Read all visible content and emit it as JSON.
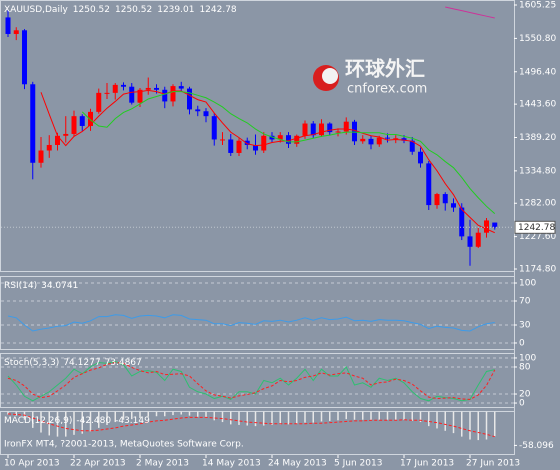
{
  "chart_data": [
    {
      "type": "candlestick",
      "title": "XAUUSD,Daily",
      "categories": [
        "10 Apr 2013",
        null,
        null,
        null,
        null,
        null,
        null,
        null,
        "22 Apr 2013",
        null,
        null,
        null,
        null,
        null,
        null,
        null,
        "2 May 2013",
        null,
        null,
        null,
        null,
        null,
        null,
        null,
        "14 May 2013",
        null,
        null,
        null,
        null,
        null,
        null,
        null,
        "24 May 2013",
        null,
        null,
        null,
        null,
        null,
        null,
        null,
        "5 Jun 2013",
        null,
        null,
        null,
        null,
        null,
        null,
        null,
        "17 Jun 2013",
        null,
        null,
        null,
        null,
        null,
        null,
        null,
        "27 Jun 2013",
        null,
        null,
        null
      ],
      "open": [
        1585,
        1558,
        1564,
        1476,
        1348,
        1368,
        1377,
        1392,
        1395,
        1424,
        1408,
        1431,
        1462,
        1462,
        1475,
        1472,
        1446,
        1467,
        1470,
        1467,
        1448,
        1473,
        1469,
        1435,
        1432,
        1424,
        1386,
        1386,
        1364,
        1384,
        1377,
        1368,
        1392,
        1386,
        1393,
        1379,
        1392,
        1412,
        1393,
        1412,
        1398,
        1399,
        1415,
        1383,
        1387,
        1378,
        1389,
        1388,
        1388,
        1384,
        1366,
        1347,
        1279,
        1297,
        1282,
        1275,
        1228,
        1211,
        1234,
        1250.52
      ],
      "high": [
        1597,
        1569,
        1566,
        1480,
        1390,
        1393,
        1397,
        1424,
        1433,
        1427,
        1436,
        1469,
        1478,
        1478,
        1479,
        1478,
        1470,
        1487,
        1476,
        1472,
        1476,
        1480,
        1472,
        1441,
        1437,
        1429,
        1398,
        1395,
        1388,
        1389,
        1394,
        1398,
        1398,
        1398,
        1398,
        1394,
        1417,
        1416,
        1419,
        1414,
        1404,
        1422,
        1418,
        1393,
        1392,
        1392,
        1396,
        1393,
        1393,
        1390,
        1373,
        1351,
        1299,
        1300,
        1290,
        1282,
        1255,
        1242,
        1258,
        1250.52
      ],
      "low": [
        1553,
        1548,
        1468,
        1321,
        1340,
        1356,
        1368,
        1381,
        1391,
        1400,
        1400,
        1428,
        1452,
        1451,
        1466,
        1443,
        1439,
        1459,
        1461,
        1437,
        1440,
        1465,
        1427,
        1424,
        1414,
        1376,
        1377,
        1359,
        1359,
        1370,
        1361,
        1364,
        1381,
        1381,
        1372,
        1374,
        1387,
        1388,
        1390,
        1393,
        1391,
        1394,
        1377,
        1379,
        1370,
        1374,
        1381,
        1380,
        1380,
        1361,
        1340,
        1271,
        1273,
        1270,
        1268,
        1222,
        1180,
        1209,
        1226,
        1239.01
      ],
      "close": [
        1558,
        1564,
        1476,
        1348,
        1368,
        1377,
        1392,
        1395,
        1424,
        1408,
        1431,
        1462,
        1462,
        1475,
        1472,
        1446,
        1467,
        1470,
        1467,
        1448,
        1473,
        1469,
        1435,
        1432,
        1424,
        1386,
        1386,
        1364,
        1384,
        1377,
        1368,
        1392,
        1386,
        1393,
        1379,
        1392,
        1412,
        1393,
        1412,
        1398,
        1399,
        1415,
        1383,
        1387,
        1378,
        1389,
        1388,
        1388,
        1384,
        1366,
        1347,
        1279,
        1297,
        1282,
        1275,
        1228,
        1211,
        1234,
        1254,
        1242.78
      ],
      "up_color": "#ff0000",
      "down_color": "#0000ff",
      "lines": [
        {
          "color": "#ff0000",
          "values": [
            null,
            null,
            null,
            null,
            1463,
            1427,
            1392,
            1376,
            1391,
            1399,
            1410,
            1424,
            1437,
            1448,
            1460,
            1463,
            1464,
            1466,
            1464,
            1460,
            1465,
            1465,
            1458,
            1451,
            1447,
            1429,
            1413,
            1398,
            1389,
            1379,
            1376,
            1377,
            1381,
            1383,
            1384,
            1388,
            1392,
            1394,
            1398,
            1401,
            1403,
            1403,
            1401,
            1396,
            1392,
            1390,
            1385,
            1386,
            1385,
            1383,
            1375,
            1353,
            1335,
            1314,
            1296,
            1272,
            1259,
            1246,
            1240,
            1234
          ]
        },
        {
          "color": "#22cc22",
          "values": [
            null,
            null,
            null,
            null,
            null,
            null,
            null,
            null,
            null,
            1431,
            1418,
            1408,
            1406,
            1420,
            1430,
            1436,
            1444,
            1452,
            1456,
            1460,
            1464,
            1464,
            1462,
            1458,
            1454,
            1447,
            1439,
            1428,
            1420,
            1413,
            1403,
            1395,
            1390,
            1386,
            1382,
            1382,
            1385,
            1388,
            1391,
            1393,
            1396,
            1398,
            1398,
            1397,
            1397,
            1397,
            1394,
            1394,
            1391,
            1388,
            1383,
            1369,
            1361,
            1350,
            1340,
            1324,
            1306,
            1291,
            1277,
            1265
          ]
        },
        {
          "color": "#cc3399",
          "values": [
            null,
            null,
            null,
            null,
            null,
            null,
            null,
            null,
            null,
            null,
            null,
            null,
            null,
            null,
            null,
            null,
            null,
            null,
            null,
            null,
            null,
            null,
            null,
            null,
            null,
            null,
            null,
            null,
            null,
            null,
            null,
            null,
            null,
            null,
            null,
            null,
            null,
            null,
            null,
            null,
            null,
            null,
            null,
            null,
            null,
            null,
            null,
            null,
            null,
            null,
            null,
            null,
            null,
            1602,
            1599,
            1596,
            1593,
            1590,
            1587,
            1584
          ]
        }
      ],
      "ylim": [
        1169.9,
        1613.4
      ],
      "yticks": [
        1605.25,
        {
          "value": 1550.8,
          "label": "1550.80"
        },
        {
          "value": 1496.4,
          "label": "1496.40"
        },
        {
          "value": 1443.6,
          "label": "1443.60"
        },
        {
          "value": 1389.2,
          "label": "1389.20"
        },
        {
          "value": 1334.8,
          "label": "1334.80"
        },
        {
          "value": 1282,
          "label": "1282.00"
        },
        {
          "value": 1227.6,
          "label": "1227.60"
        },
        {
          "value": 1174.8,
          "label": "1174.80"
        }
      ]
    },
    {
      "type": "line",
      "title": "RSI(14)",
      "series": [
        {
          "color": "#3d9be9",
          "values": [
            45,
            42,
            30,
            20,
            23,
            25,
            28,
            29,
            35,
            33,
            37,
            44,
            44,
            47,
            46,
            41,
            45,
            46,
            45,
            42,
            47,
            46,
            40,
            39,
            38,
            32,
            32,
            29,
            34,
            33,
            31,
            37,
            36,
            38,
            35,
            38,
            42,
            38,
            42,
            39,
            40,
            43,
            37,
            38,
            36,
            39,
            38,
            38,
            37,
            34,
            31,
            24,
            28,
            26,
            25,
            21,
            20,
            27,
            32,
            34.0741
          ]
        }
      ],
      "ylim": [
        -11.7,
        111.7
      ],
      "yticks": [
        100,
        70,
        30,
        0
      ],
      "grid": true
    },
    {
      "type": "line",
      "title": "Stoch(5,3,3)",
      "series": [
        {
          "color": "#2fbf71",
          "values": [
            60,
            40,
            15,
            5,
            15,
            25,
            40,
            55,
            75,
            65,
            80,
            90,
            88,
            92,
            85,
            60,
            70,
            72,
            68,
            50,
            75,
            70,
            35,
            25,
            20,
            10,
            15,
            8,
            25,
            25,
            20,
            50,
            45,
            55,
            40,
            55,
            75,
            50,
            75,
            60,
            60,
            80,
            40,
            45,
            35,
            55,
            50,
            55,
            45,
            25,
            10,
            5,
            15,
            12,
            10,
            5,
            8,
            40,
            70,
            74.1277
          ]
        },
        {
          "color": "#ff2020",
          "style": "dashed",
          "values": [
            55,
            50,
            38,
            20,
            12,
            15,
            27,
            40,
            57,
            65,
            73,
            78,
            86,
            90,
            88,
            79,
            72,
            67,
            70,
            63,
            64,
            65,
            60,
            43,
            27,
            18,
            15,
            11,
            16,
            19,
            23,
            32,
            38,
            50,
            47,
            50,
            57,
            60,
            67,
            62,
            65,
            67,
            60,
            55,
            40,
            45,
            47,
            53,
            50,
            42,
            27,
            13,
            10,
            11,
            12,
            9,
            8,
            18,
            39,
            73.4867
          ]
        }
      ],
      "ylim": [
        -11,
        111
      ],
      "yticks": [
        100,
        80,
        20,
        0
      ],
      "grid": true
    },
    {
      "type": "bar",
      "title": "MACD(12,26,9)",
      "values": [
        -5,
        -7,
        -14,
        -28,
        -36,
        -41,
        -43,
        -43,
        -40,
        -38,
        -34,
        -28,
        -23,
        -18,
        -14,
        -13,
        -11,
        -9,
        -8,
        -8,
        -6,
        -5,
        -7,
        -9,
        -11,
        -15,
        -18,
        -22,
        -23,
        -24,
        -25,
        -24,
        -23,
        -22,
        -22,
        -21,
        -19,
        -19,
        -17,
        -16,
        -15,
        -13,
        -14,
        -14,
        -15,
        -14,
        -14,
        -14,
        -14,
        -16,
        -18,
        -25,
        -29,
        -33,
        -37,
        -43,
        -48,
        -49,
        -48,
        -42.48
      ],
      "value_label_last": "-42.480",
      "color": "#e8e8e8",
      "signal": {
        "color": "#ff2020",
        "style": "dashed",
        "values": [
          -4,
          -5,
          -6,
          -11,
          -16,
          -21,
          -25,
          -29,
          -31,
          -33,
          -33,
          -32,
          -30,
          -28,
          -25,
          -23,
          -21,
          -18,
          -16,
          -15,
          -13,
          -11,
          -10,
          -10,
          -10,
          -11,
          -12,
          -14,
          -16,
          -18,
          -19,
          -20,
          -21,
          -21,
          -21,
          -21,
          -21,
          -20,
          -20,
          -19,
          -18,
          -17,
          -16,
          -16,
          -15,
          -15,
          -15,
          -15,
          -14,
          -15,
          -15,
          -17,
          -19,
          -22,
          -25,
          -29,
          -33,
          -36,
          -39,
          -43.149
        ]
      },
      "ylim": [
        -74.6,
        1
      ],
      "yticks": [
        -58.096
      ]
    }
  ],
  "watermark": {
    "title": "环球外汇",
    "subtitle": "cnforex.com"
  },
  "copyright": "IronFX MT4, ?2001-2013, MetaQuotes Software Corp."
}
